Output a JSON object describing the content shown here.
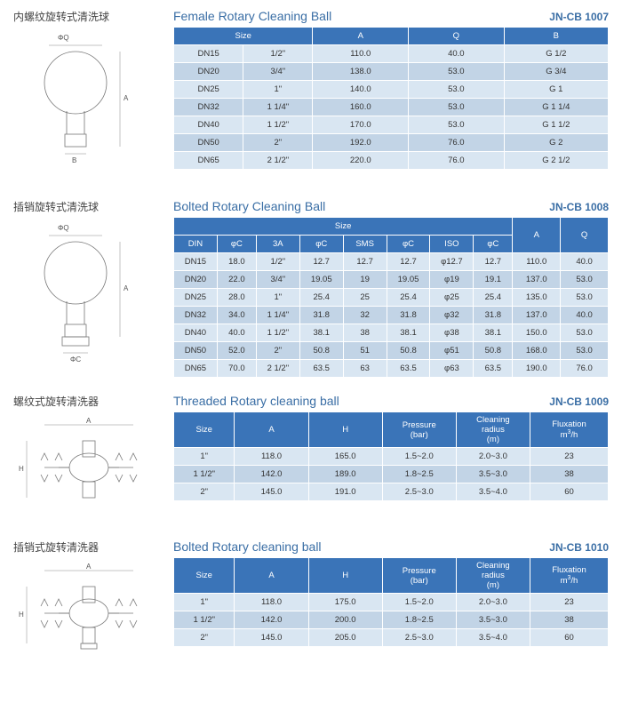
{
  "colors": {
    "header_bg": "#3a74b8",
    "row_even": "#d9e6f2",
    "row_odd": "#c2d4e6",
    "title_color": "#3a6ea5"
  },
  "products": [
    {
      "zh_title": "内螺纹旋转式清洗球",
      "en_title": "Female Rotary  Cleaning Ball",
      "code": "JN-CB 1007",
      "diagram": "ball_female",
      "table": {
        "header_rows": [
          [
            {
              "label": "Size",
              "colspan": 2
            },
            {
              "label": "A"
            },
            {
              "label": "Q"
            },
            {
              "label": "B"
            }
          ]
        ],
        "col_widths": [
          "16%",
          "16%",
          "22%",
          "22%",
          "24%"
        ],
        "rows": [
          [
            "DN15",
            "1/2\"",
            "110.0",
            "40.0",
            "G 1/2"
          ],
          [
            "DN20",
            "3/4\"",
            "138.0",
            "53.0",
            "G 3/4"
          ],
          [
            "DN25",
            "1\"",
            "140.0",
            "53.0",
            "G 1"
          ],
          [
            "DN32",
            "1 1/4\"",
            "160.0",
            "53.0",
            "G 1 1/4"
          ],
          [
            "DN40",
            "1 1/2\"",
            "170.0",
            "53.0",
            "G 1 1/2"
          ],
          [
            "DN50",
            "2\"",
            "192.0",
            "76.0",
            "G 2"
          ],
          [
            "DN65",
            "2 1/2\"",
            "220.0",
            "76.0",
            "G 2 1/2"
          ]
        ]
      }
    },
    {
      "zh_title": "插销旋转式清洗球",
      "en_title": "Bolted Rotary  Cleaning Ball",
      "code": "JN-CB 1008",
      "diagram": "ball_bolted",
      "table": {
        "header_rows": [
          [
            {
              "label": "Size",
              "colspan": 8
            },
            {
              "label": "A",
              "rowspan": 2
            },
            {
              "label": "Q",
              "rowspan": 2
            }
          ],
          [
            {
              "label": "DIN"
            },
            {
              "label": "φC"
            },
            {
              "label": "3A"
            },
            {
              "label": "φC"
            },
            {
              "label": "SMS"
            },
            {
              "label": "φC"
            },
            {
              "label": "ISO"
            },
            {
              "label": "φC"
            }
          ]
        ],
        "col_widths": [
          "10%",
          "9%",
          "10%",
          "10%",
          "10%",
          "10%",
          "10%",
          "9%",
          "11%",
          "11%"
        ],
        "rows": [
          [
            "DN15",
            "18.0",
            "1/2\"",
            "12.7",
            "12.7",
            "12.7",
            "φ12.7",
            "12.7",
            "110.0",
            "40.0"
          ],
          [
            "DN20",
            "22.0",
            "3/4\"",
            "19.05",
            "19",
            "19.05",
            "φ19",
            "19.1",
            "137.0",
            "53.0"
          ],
          [
            "DN25",
            "28.0",
            "1\"",
            "25.4",
            "25",
            "25.4",
            "φ25",
            "25.4",
            "135.0",
            "53.0"
          ],
          [
            "DN32",
            "34.0",
            "1 1/4\"",
            "31.8",
            "32",
            "31.8",
            "φ32",
            "31.8",
            "137.0",
            "40.0"
          ],
          [
            "DN40",
            "40.0",
            "1 1/2\"",
            "38.1",
            "38",
            "38.1",
            "φ38",
            "38.1",
            "150.0",
            "53.0"
          ],
          [
            "DN50",
            "52.0",
            "2\"",
            "50.8",
            "51",
            "50.8",
            "φ51",
            "50.8",
            "168.0",
            "53.0"
          ],
          [
            "DN65",
            "70.0",
            "2 1/2\"",
            "63.5",
            "63",
            "63.5",
            "φ63",
            "63.5",
            "190.0",
            "76.0"
          ]
        ]
      }
    },
    {
      "zh_title": "螺纹式旋转清洗器",
      "en_title": "Threaded Rotary cleaning ball",
      "code": "JN-CB 1009",
      "diagram": "cleaner_threaded",
      "table": {
        "header_rows": [
          [
            {
              "label": "Size"
            },
            {
              "label": "A"
            },
            {
              "label": "H"
            },
            {
              "label": "Pressure<br>(bar)"
            },
            {
              "label": "Cleaning<br>radius<br>(m)"
            },
            {
              "label": "Fluxation<br>m<sup>3</sup>/h"
            }
          ]
        ],
        "col_widths": [
          "14%",
          "17%",
          "17%",
          "17%",
          "17%",
          "18%"
        ],
        "rows": [
          [
            "1\"",
            "118.0",
            "165.0",
            "1.5~2.0",
            "2.0~3.0",
            "23"
          ],
          [
            "1 1/2\"",
            "142.0",
            "189.0",
            "1.8~2.5",
            "3.5~3.0",
            "38"
          ],
          [
            "2\"",
            "145.0",
            "191.0",
            "2.5~3.0",
            "3.5~4.0",
            "60"
          ]
        ]
      }
    },
    {
      "zh_title": "插销式旋转清洗器",
      "en_title": "Bolted Rotary cleaning ball",
      "code": "JN-CB 1010",
      "diagram": "cleaner_bolted",
      "table": {
        "header_rows": [
          [
            {
              "label": "Size"
            },
            {
              "label": "A"
            },
            {
              "label": "H"
            },
            {
              "label": "Pressure<br>(bar)"
            },
            {
              "label": "Cleaning<br>radius<br>(m)"
            },
            {
              "label": "Fluxation<br>m<sup>3</sup>/h"
            }
          ]
        ],
        "col_widths": [
          "14%",
          "17%",
          "17%",
          "17%",
          "17%",
          "18%"
        ],
        "rows": [
          [
            "1\"",
            "118.0",
            "175.0",
            "1.5~2.0",
            "2.0~3.0",
            "23"
          ],
          [
            "1 1/2\"",
            "142.0",
            "200.0",
            "1.8~2.5",
            "3.5~3.0",
            "38"
          ],
          [
            "2\"",
            "145.0",
            "205.0",
            "2.5~3.0",
            "3.5~4.0",
            "60"
          ]
        ]
      }
    }
  ]
}
